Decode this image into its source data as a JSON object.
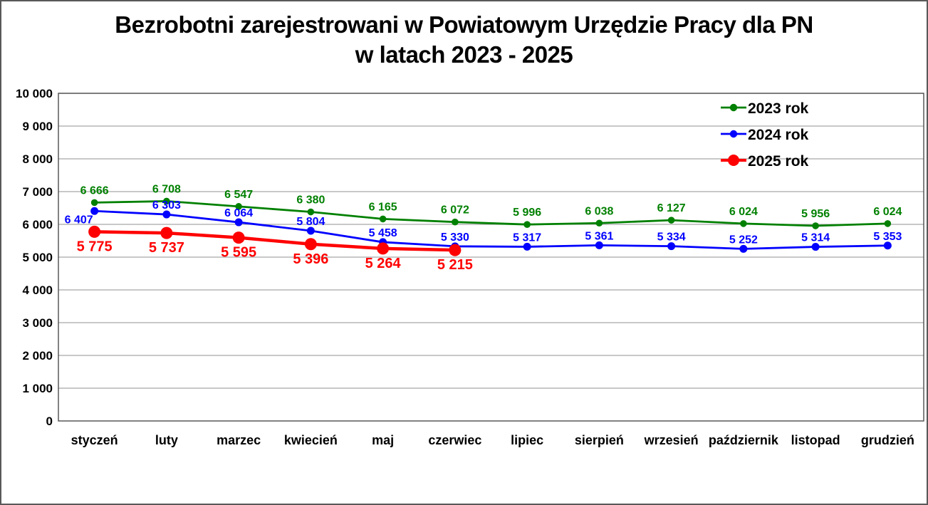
{
  "chart_data": {
    "type": "line",
    "title": "Bezrobotni zarejestrowani w Powiatowym Urzędzie Pracy dla PN",
    "subtitle": "w latach 2023 - 2025",
    "categories": [
      "styczeń",
      "luty",
      "marzec",
      "kwiecień",
      "maj",
      "czerwiec",
      "lipiec",
      "sierpień",
      "wrzesień",
      "październik",
      "listopad",
      "grudzień"
    ],
    "series": [
      {
        "name": "2023 rok",
        "color": "#008000",
        "values": [
          6666,
          6708,
          6547,
          6380,
          6165,
          6072,
          5996,
          6038,
          6127,
          6024,
          5956,
          6024
        ]
      },
      {
        "name": "2024 rok",
        "color": "#0000FF",
        "values": [
          6407,
          6303,
          6064,
          5804,
          5458,
          5330,
          5317,
          5361,
          5334,
          5252,
          5314,
          5353
        ]
      },
      {
        "name": "2025 rok",
        "color": "#FF0000",
        "values": [
          5775,
          5737,
          5595,
          5396,
          5264,
          5215
        ]
      }
    ],
    "ylim": [
      0,
      10000
    ],
    "ytick_step": 1000,
    "ytick_labels": [
      "0",
      "1 000",
      "2 000",
      "3 000",
      "4 000",
      "5 000",
      "6 000",
      "7 000",
      "8 000",
      "9 000",
      "10 000"
    ],
    "grid": true,
    "gridline_color": "#A6A6A6",
    "plot_border_color": "#595959",
    "axis_text_color": "#000000",
    "legend_position": "top-right",
    "legend_labels": [
      "2023 rok",
      "2024 rok",
      "2025 rok"
    ],
    "data_labels_shown": true,
    "xlabel": "",
    "ylabel": ""
  }
}
